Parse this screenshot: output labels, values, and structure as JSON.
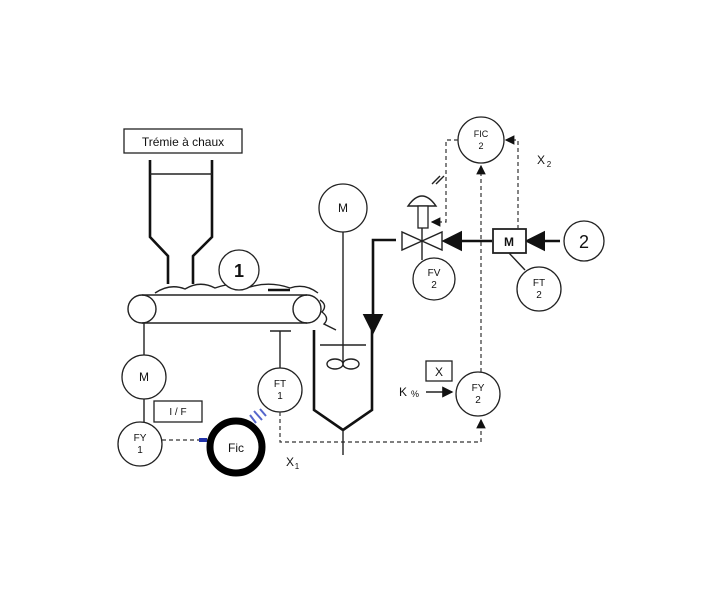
{
  "hopper": {
    "label": "Trémie à chaux"
  },
  "conveyor": {
    "number": "1"
  },
  "motors": {
    "conveyor_motor": "M",
    "mixer_motor": "M",
    "line_meter": "M"
  },
  "instruments": {
    "fy1": {
      "tag": "FY",
      "num": "1"
    },
    "if_converter": "I / F",
    "fic_new": "Fic",
    "ft1": {
      "tag": "FT",
      "num": "1"
    },
    "fy2": {
      "tag": "FY",
      "num": "2"
    },
    "fic2": {
      "tag": "FIC",
      "num": "2"
    },
    "fv2": {
      "tag": "FV",
      "num": "2"
    },
    "ft2": {
      "tag": "FT",
      "num": "2"
    },
    "x_box": "X"
  },
  "stream": {
    "number": "2"
  },
  "signals": {
    "x1_main": "X",
    "x1_sub": "1",
    "x2_main": "X",
    "x2_sub": "2",
    "k_main": "K",
    "k_sub": "%"
  }
}
